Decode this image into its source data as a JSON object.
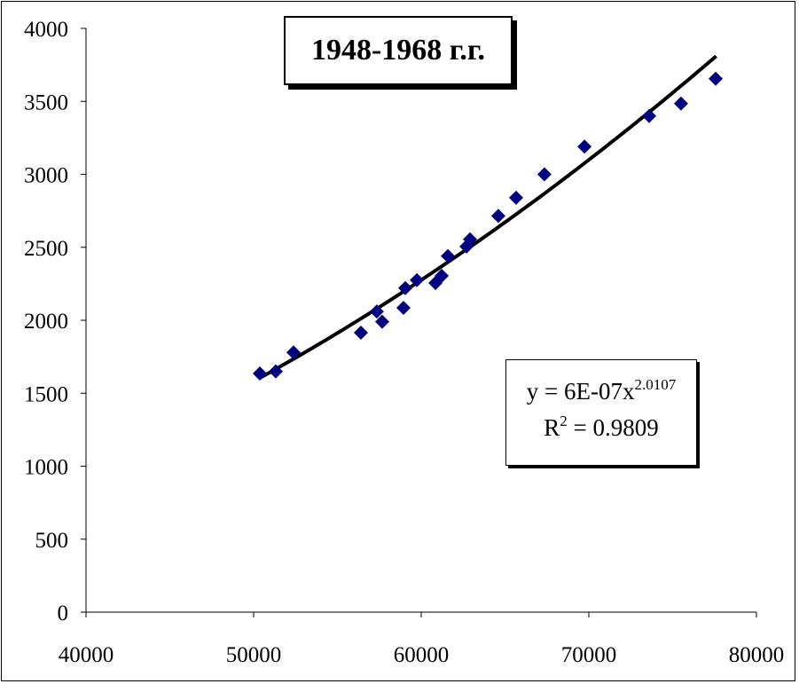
{
  "chart_data": {
    "type": "scatter",
    "title": "1948-1968 г.г.",
    "xlabel": "",
    "ylabel": "",
    "xlim": [
      40000,
      80000
    ],
    "ylim": [
      0,
      4000
    ],
    "xticks": [
      "40000",
      "50000",
      "60000",
      "70000",
      "80000"
    ],
    "yticks": [
      "0",
      "500",
      "1000",
      "1500",
      "2000",
      "2500",
      "3000",
      "3500",
      "4000"
    ],
    "grid": false,
    "marker_color": "#000080",
    "points": [
      [
        50370,
        1635
      ],
      [
        51320,
        1650
      ],
      [
        52380,
        1780
      ],
      [
        56400,
        1915
      ],
      [
        57350,
        2060
      ],
      [
        57670,
        1990
      ],
      [
        58940,
        2085
      ],
      [
        59050,
        2220
      ],
      [
        59740,
        2275
      ],
      [
        60850,
        2255
      ],
      [
        61220,
        2305
      ],
      [
        61590,
        2440
      ],
      [
        62700,
        2505
      ],
      [
        62910,
        2555
      ],
      [
        64600,
        2715
      ],
      [
        65660,
        2840
      ],
      [
        67350,
        3000
      ],
      [
        69740,
        3190
      ],
      [
        73600,
        3400
      ],
      [
        75500,
        3485
      ],
      [
        77570,
        3655
      ]
    ],
    "trendline": {
      "type": "power",
      "exponent": 2.0107,
      "x_range": [
        50300,
        77600
      ],
      "y_range": [
        1600,
        3810
      ],
      "equation_prefix": "y = 6E-07x",
      "equation_exp": "2.0107",
      "r2_prefix": "R",
      "r2_exp": "2",
      "r2_suffix": " = 0.9809"
    }
  }
}
